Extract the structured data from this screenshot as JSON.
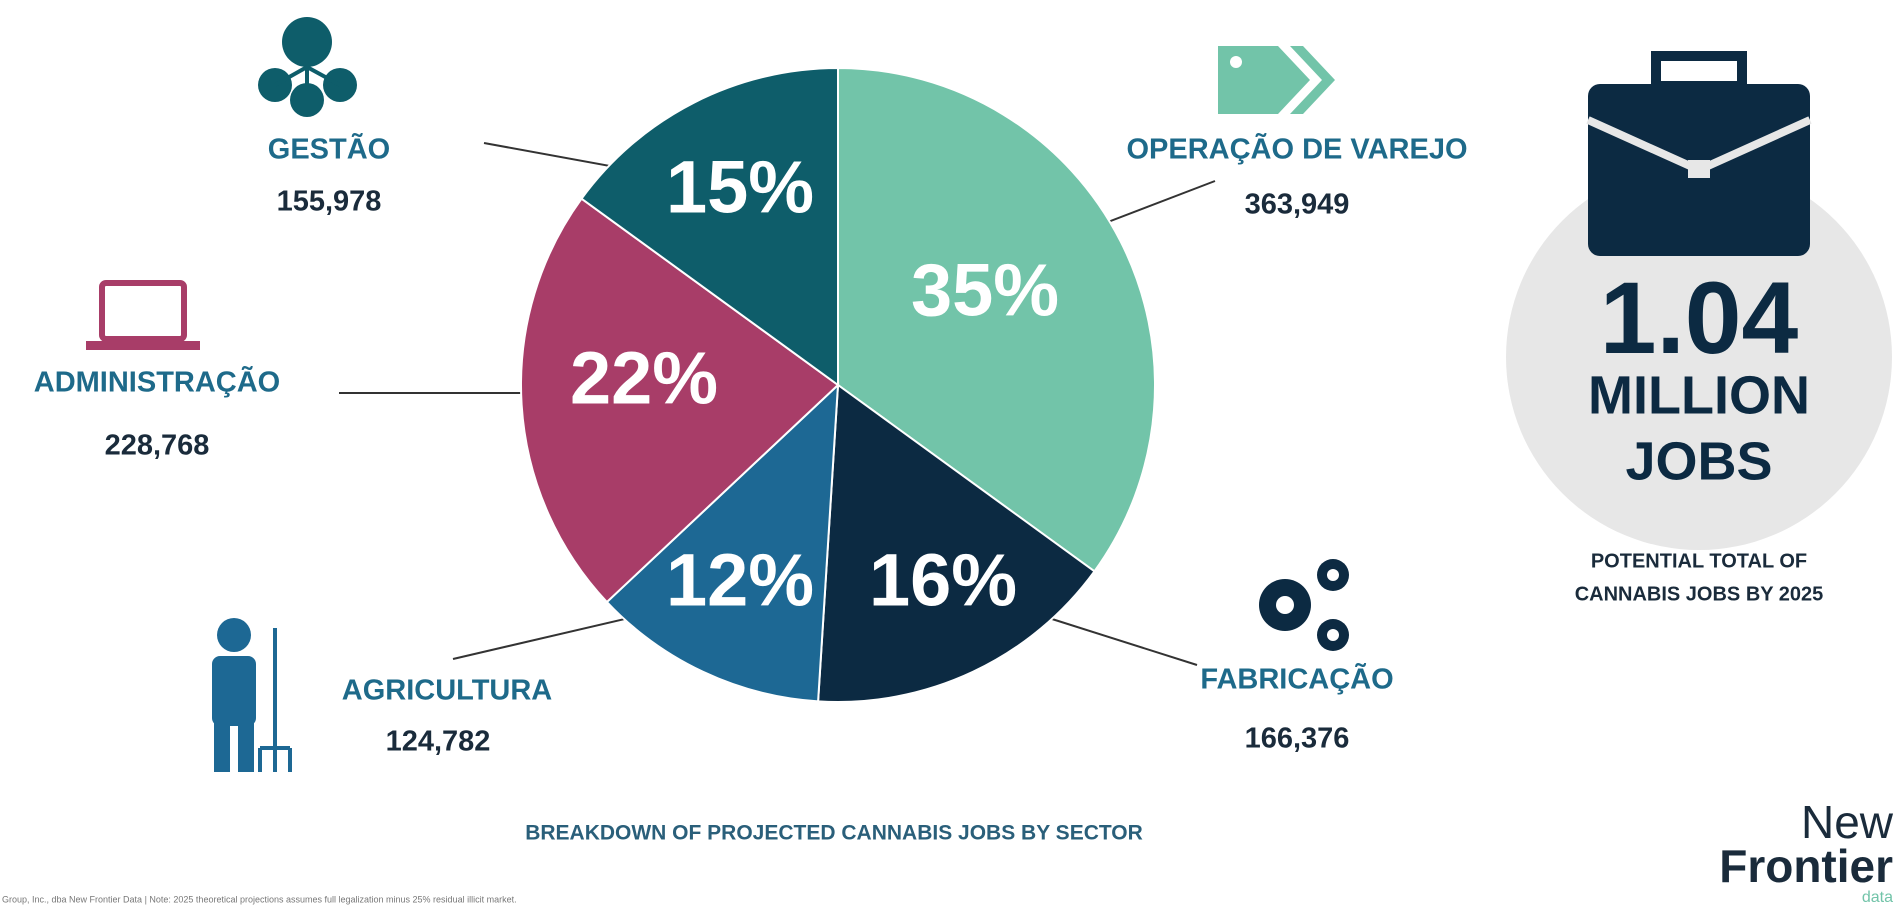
{
  "chart_data": {
    "type": "pie",
    "categories": [
      "OPERAÇÃO DE VAREJO",
      "FABRICAÇÃO",
      "AGRICULTURA",
      "ADMINISTRAÇÃO",
      "GESTÃO"
    ],
    "values": [
      35,
      16,
      12,
      22,
      15
    ],
    "value_labels": [
      "35%",
      "16%",
      "12%",
      "22%",
      "15%"
    ],
    "counts": [
      "363,949",
      "166,376",
      "124,782",
      "228,768",
      "155,978"
    ],
    "colors": [
      "#72c4a9",
      "#0c2a42",
      "#1d6894",
      "#a83d68",
      "#0e5d6a"
    ],
    "caption": "BREAKDOWN OF PROJECTED CANNABIS JOBS BY SECTOR",
    "total": {
      "number": "1.04",
      "unit": "MILLION",
      "word": "JOBS",
      "note_line1": "POTENTIAL TOTAL OF",
      "note_line2": "CANNABIS JOBS BY 2025"
    },
    "logo": {
      "line1": "New",
      "line2": "Frontier",
      "line3": "data"
    },
    "footnote": "Group, Inc., dba New Frontier Data | Note: 2025 theoretical projections assumes full legalization minus 25% residual illicit market."
  }
}
